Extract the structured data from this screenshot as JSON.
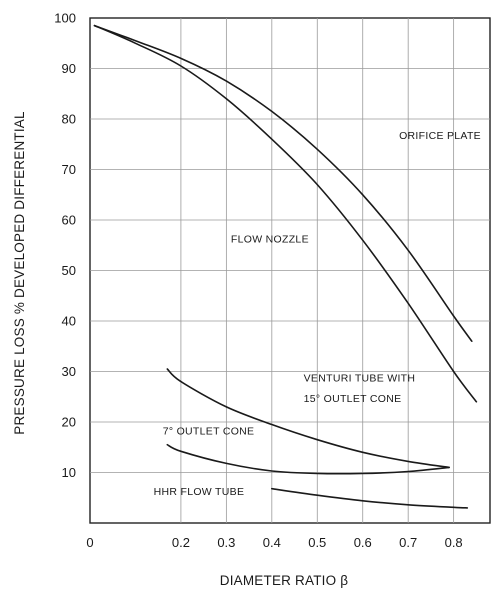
{
  "chart_data": {
    "type": "line",
    "title": "",
    "xlabel": "DIAMETER RATIO β",
    "ylabel": "PRESSURE LOSS % DEVELOPED DIFFERENTIAL",
    "xlim": [
      0,
      0.88
    ],
    "ylim": [
      0,
      100
    ],
    "grid": true,
    "x_ticks": [
      {
        "value": 0,
        "label": "0"
      },
      {
        "value": 0.2,
        "label": "0.2"
      },
      {
        "value": 0.3,
        "label": "0.3"
      },
      {
        "value": 0.4,
        "label": "0.4"
      },
      {
        "value": 0.5,
        "label": "0.5"
      },
      {
        "value": 0.6,
        "label": "0.6"
      },
      {
        "value": 0.7,
        "label": "0.7"
      },
      {
        "value": 0.8,
        "label": "0.8"
      }
    ],
    "y_ticks": [
      {
        "value": 10,
        "label": "10"
      },
      {
        "value": 20,
        "label": "20"
      },
      {
        "value": 30,
        "label": "30"
      },
      {
        "value": 40,
        "label": "40"
      },
      {
        "value": 50,
        "label": "50"
      },
      {
        "value": 60,
        "label": "60"
      },
      {
        "value": 70,
        "label": "70"
      },
      {
        "value": 80,
        "label": "80"
      },
      {
        "value": 90,
        "label": "90"
      },
      {
        "value": 100,
        "label": "100"
      }
    ],
    "series": [
      {
        "name": "ORIFICE PLATE",
        "x": [
          0.01,
          0.1,
          0.2,
          0.3,
          0.4,
          0.5,
          0.6,
          0.7,
          0.8,
          0.84
        ],
        "y": [
          98.5,
          95.5,
          92,
          87.5,
          81.5,
          74,
          65,
          54,
          41,
          36
        ]
      },
      {
        "name": "FLOW NOZZLE",
        "x": [
          0.01,
          0.1,
          0.2,
          0.3,
          0.4,
          0.5,
          0.6,
          0.7,
          0.8,
          0.85
        ],
        "y": [
          98.5,
          95,
          90.5,
          84,
          76,
          67,
          56,
          43.5,
          30,
          24
        ]
      },
      {
        "name": "VENTURI TUBE WITH 15° OUTLET CONE",
        "x": [
          0.17,
          0.2,
          0.3,
          0.4,
          0.5,
          0.6,
          0.7,
          0.79
        ],
        "y": [
          30.5,
          28,
          23,
          19.5,
          16.5,
          14,
          12.2,
          11
        ]
      },
      {
        "name": "7° OUTLET CONE",
        "x": [
          0.17,
          0.2,
          0.3,
          0.4,
          0.5,
          0.6,
          0.7,
          0.79
        ],
        "y": [
          15.5,
          14.2,
          11.8,
          10.3,
          9.8,
          9.8,
          10.2,
          11
        ]
      },
      {
        "name": "HHR FLOW TUBE",
        "x": [
          0.4,
          0.5,
          0.6,
          0.7,
          0.8,
          0.83
        ],
        "y": [
          6.8,
          5.5,
          4.4,
          3.6,
          3.1,
          3.0
        ]
      }
    ],
    "annotations": [
      {
        "text": "ORIFICE PLATE",
        "x": 0.68,
        "y": 76
      },
      {
        "text": "FLOW NOZZLE",
        "x": 0.31,
        "y": 55.5
      },
      {
        "text": "VENTURI TUBE WITH",
        "x": 0.47,
        "y": 28
      },
      {
        "text": "15° OUTLET CONE",
        "x": 0.47,
        "y": 24
      },
      {
        "text": "7° OUTLET CONE",
        "x": 0.16,
        "y": 17.5
      },
      {
        "text": "HHR FLOW TUBE",
        "x": 0.14,
        "y": 5.5
      }
    ],
    "colors": {
      "line": "#1a1a1a",
      "grid": "#9a9a9a",
      "frame": "#222222"
    }
  }
}
